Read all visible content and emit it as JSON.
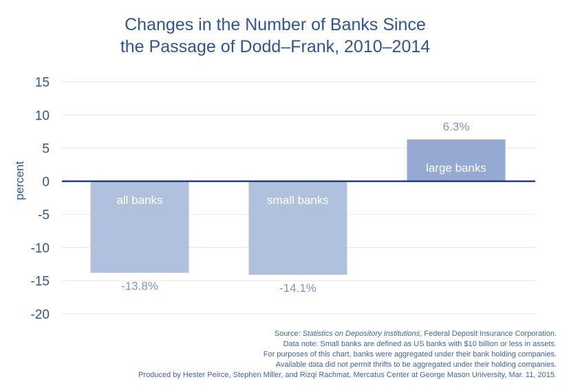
{
  "title_lines": [
    "Changes in the Number of Banks Since",
    "the Passage of Dodd–Frank, 2010–2014"
  ],
  "chart_data": {
    "type": "bar",
    "title": "Changes in the Number of Banks Since the Passage of Dodd–Frank, 2010–2014",
    "xlabel": "",
    "ylabel": "percent",
    "categories": [
      "all banks",
      "small banks",
      "large banks"
    ],
    "values": [
      -13.8,
      -14.1,
      6.3
    ],
    "value_labels": [
      "-13.8%",
      "-14.1%",
      "6.3%"
    ],
    "ylim": [
      -20,
      15
    ],
    "yticks": [
      15,
      10,
      5,
      0,
      -5,
      -10,
      -15,
      -20
    ],
    "ytick_labels": [
      "15",
      "10",
      "5",
      "0",
      "-5",
      "-10",
      "-15",
      "-20"
    ],
    "grid": true,
    "legend": "none",
    "colors": {
      "bar_negative": "#b0c1de",
      "bar_positive": "#95a9d2",
      "axis_zero": "#1f3f7a",
      "grid": "#e6e6e6",
      "text": "#2f5596",
      "value_label": "#7d95c6"
    }
  },
  "notes": {
    "source_prefix": "Source: ",
    "source_italic": "Statistics on Depository Institutions",
    "source_suffix": ", Federal Deposit Insurance Corporation.",
    "line2": "Data note: Small banks are defined as US banks with $10 billion or less in assets.",
    "line3": "For purposes of this chart, banks were aggregated under their bank holding companies.",
    "line4": "Available data did not permit thrifts to be aggregated under their holding companies.",
    "line5": "Produced by Hester Peirce, Stephen Miller, and Rizqi Rachmat, Mercatus Center at George Mason University, Mar. 11, 2015."
  }
}
